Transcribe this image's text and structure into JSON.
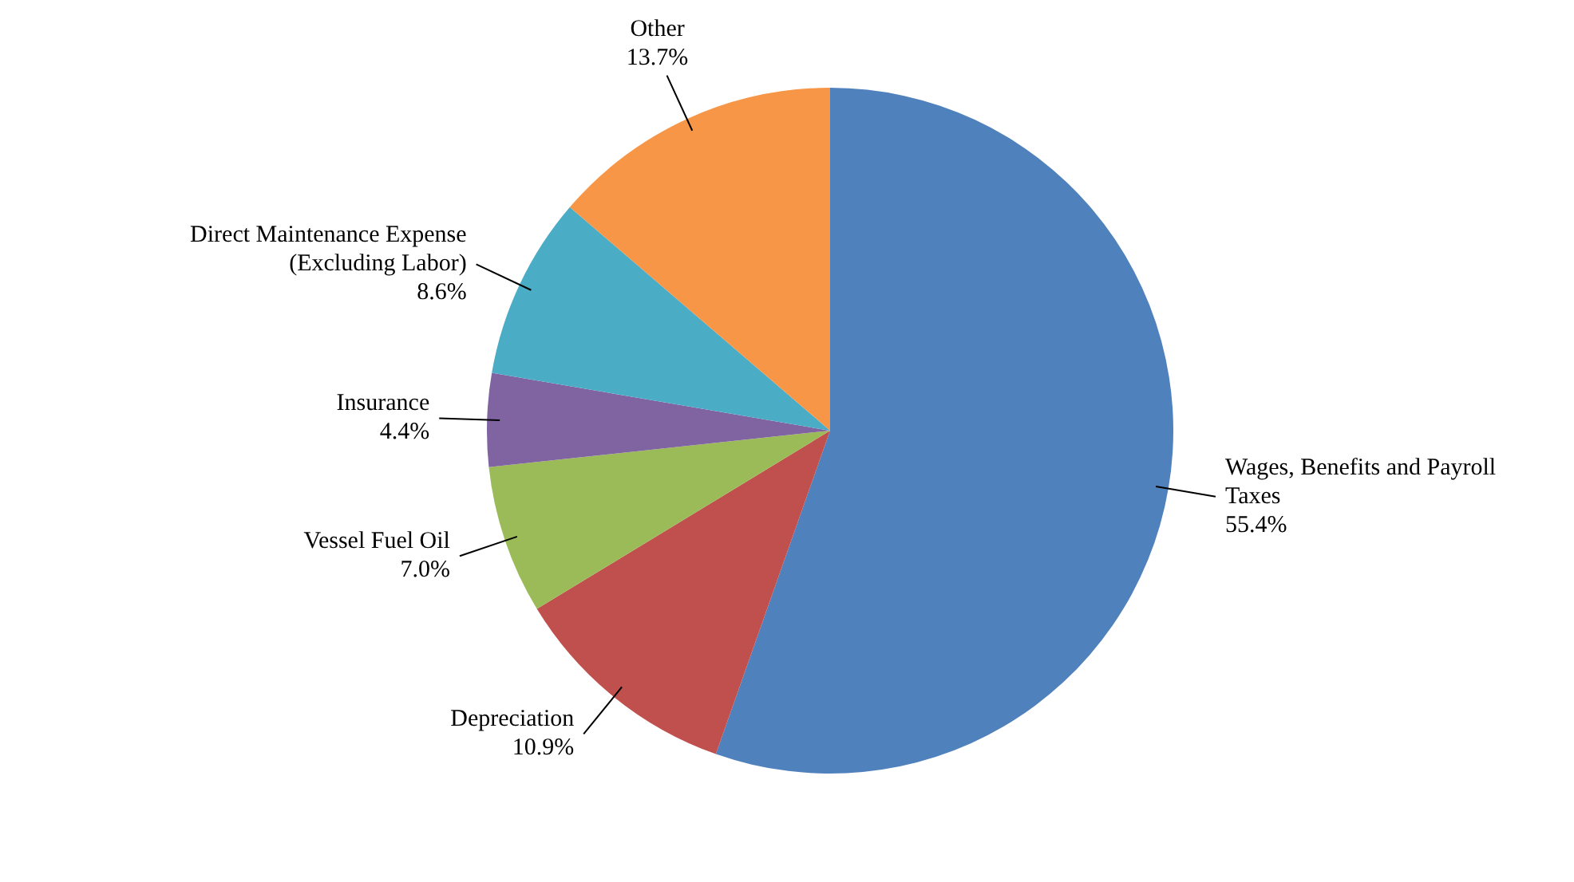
{
  "chart_data": {
    "type": "pie",
    "categories": [
      "Wages, Benefits and Payroll Taxes",
      "Depreciation",
      "Vessel Fuel Oil",
      "Insurance",
      "Direct Maintenance Expense (Excluding Labor)",
      "Other"
    ],
    "values": [
      55.4,
      10.9,
      7.0,
      4.4,
      8.6,
      13.7
    ],
    "value_labels": [
      "55.4%",
      "10.9%",
      "7.0%",
      "4.4%",
      "8.6%",
      "13.7%"
    ],
    "colors": [
      "#4f81bd",
      "#c0504d",
      "#9bbb59",
      "#8064a2",
      "#4bacc6",
      "#f79646"
    ],
    "legend": false
  }
}
